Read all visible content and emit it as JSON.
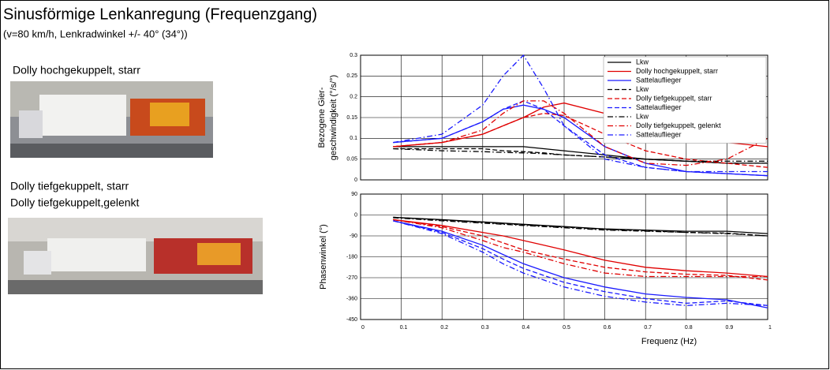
{
  "title": "Sinusförmige Lenkanregung (Frequenzgang)",
  "subtitle": "(v=80 km/h, Lenkradwinkel +/- 40° (34°))",
  "captions": [
    "Dolly hochgekuppelt, starr",
    "Dolly tiefgekuppelt, starr",
    "Dolly tiefgekuppelt,gelenkt"
  ],
  "chart_data": [
    {
      "type": "line",
      "y_label": [
        "Bezogene Gier-",
        "geschwindigkeit (°/s/°)"
      ],
      "x": [
        0.08,
        0.2,
        0.3,
        0.35,
        0.4,
        0.45,
        0.5,
        0.6,
        0.7,
        0.8,
        0.9,
        1.0
      ],
      "xlim": [
        0,
        1
      ],
      "ylim": [
        0,
        0.3
      ],
      "xgrid": [
        0,
        0.1,
        0.2,
        0.3,
        0.4,
        0.5,
        0.6,
        0.7,
        0.8,
        0.9,
        1
      ],
      "yticks": [
        0,
        0.05,
        0.1,
        0.15,
        0.2,
        0.25,
        0.3
      ],
      "grid": true,
      "legend": "upper right",
      "series": [
        {
          "name": "Lkw",
          "color": "#000000",
          "dash": "solid",
          "values": [
            0.08,
            0.08,
            0.08,
            0.08,
            0.08,
            0.075,
            0.07,
            0.06,
            0.05,
            0.045,
            0.04,
            0.04
          ]
        },
        {
          "name": "Dolly hochgekuppelt, starr",
          "color": "#e00000",
          "dash": "solid",
          "values": [
            0.08,
            0.09,
            0.11,
            0.13,
            0.15,
            0.175,
            0.185,
            0.16,
            0.12,
            0.1,
            0.09,
            0.08
          ]
        },
        {
          "name": "Sattelauflieger",
          "color": "#1a1aff",
          "dash": "solid",
          "values": [
            0.09,
            0.1,
            0.14,
            0.17,
            0.18,
            0.17,
            0.15,
            0.08,
            0.04,
            0.02,
            0.015,
            0.01
          ]
        },
        {
          "name": "Lkw",
          "color": "#000000",
          "dash": "dashed",
          "values": [
            0.075,
            0.075,
            0.075,
            0.07,
            0.068,
            0.065,
            0.06,
            0.055,
            0.05,
            0.045,
            0.04,
            0.04
          ]
        },
        {
          "name": "Dolly tiefgekuppelt, starr",
          "color": "#e00000",
          "dash": "dashed",
          "values": [
            0.08,
            0.09,
            0.11,
            0.13,
            0.15,
            0.16,
            0.155,
            0.11,
            0.07,
            0.05,
            0.04,
            0.03
          ]
        },
        {
          "name": "Sattelauflieger",
          "color": "#1a1aff",
          "dash": "dashed",
          "values": [
            0.09,
            0.1,
            0.14,
            0.17,
            0.19,
            0.17,
            0.13,
            0.06,
            0.03,
            0.02,
            0.015,
            0.01
          ]
        },
        {
          "name": "Lkw",
          "color": "#000000",
          "dash": "dashdot",
          "values": [
            0.075,
            0.07,
            0.068,
            0.066,
            0.065,
            0.063,
            0.06,
            0.055,
            0.05,
            0.045,
            0.045,
            0.045
          ]
        },
        {
          "name": "Dolly tiefgekuppelt, gelenkt",
          "color": "#e00000",
          "dash": "dashdot",
          "values": [
            0.08,
            0.09,
            0.12,
            0.16,
            0.19,
            0.19,
            0.16,
            0.08,
            0.04,
            0.035,
            0.05,
            0.1
          ]
        },
        {
          "name": "Sattelauflieger",
          "color": "#1a1aff",
          "dash": "dashdot",
          "values": [
            0.09,
            0.11,
            0.18,
            0.25,
            0.3,
            0.22,
            0.13,
            0.05,
            0.03,
            0.02,
            0.02,
            0.02
          ]
        }
      ]
    },
    {
      "type": "line",
      "x_label": "Frequenz (Hz)",
      "y_label": [
        "Phasenwinkel (°)"
      ],
      "x": [
        0.08,
        0.2,
        0.3,
        0.35,
        0.4,
        0.45,
        0.5,
        0.6,
        0.7,
        0.8,
        0.9,
        1.0
      ],
      "xlim": [
        0,
        1
      ],
      "ylim": [
        -450,
        90
      ],
      "xticks": [
        0,
        0.1,
        0.2,
        0.3,
        0.4,
        0.5,
        0.6,
        0.7,
        0.8,
        0.9,
        1
      ],
      "yticks": [
        -450,
        -360,
        -270,
        -180,
        -90,
        0,
        90
      ],
      "grid": true,
      "series": [
        {
          "color": "#000000",
          "dash": "solid",
          "values": [
            -10,
            -20,
            -30,
            -35,
            -40,
            -45,
            -50,
            -60,
            -65,
            -70,
            -70,
            -80
          ]
        },
        {
          "color": "#e00000",
          "dash": "solid",
          "values": [
            -20,
            -45,
            -75,
            -90,
            -110,
            -130,
            -150,
            -195,
            -225,
            -240,
            -250,
            -265
          ]
        },
        {
          "color": "#1a1aff",
          "dash": "solid",
          "values": [
            -25,
            -70,
            -130,
            -170,
            -210,
            -240,
            -270,
            -310,
            -340,
            -355,
            -365,
            -400
          ]
        },
        {
          "color": "#000000",
          "dash": "dashed",
          "values": [
            -10,
            -22,
            -32,
            -38,
            -42,
            -48,
            -52,
            -62,
            -68,
            -75,
            -78,
            -90
          ]
        },
        {
          "color": "#e00000",
          "dash": "dashed",
          "values": [
            -20,
            -50,
            -90,
            -120,
            -150,
            -170,
            -190,
            -225,
            -245,
            -255,
            -260,
            -280
          ]
        },
        {
          "color": "#1a1aff",
          "dash": "dashed",
          "values": [
            -25,
            -75,
            -145,
            -190,
            -230,
            -260,
            -290,
            -330,
            -360,
            -380,
            -370,
            -390
          ]
        },
        {
          "color": "#000000",
          "dash": "dashdot",
          "values": [
            -12,
            -25,
            -35,
            -40,
            -45,
            -50,
            -55,
            -65,
            -70,
            -75,
            -80,
            -90
          ]
        },
        {
          "color": "#e00000",
          "dash": "dashdot",
          "values": [
            -20,
            -55,
            -110,
            -140,
            -160,
            -185,
            -210,
            -250,
            -265,
            -265,
            -265,
            -265
          ]
        },
        {
          "color": "#1a1aff",
          "dash": "dashdot",
          "values": [
            -25,
            -80,
            -160,
            -210,
            -250,
            -280,
            -310,
            -350,
            -375,
            -390,
            -380,
            -390
          ]
        }
      ]
    }
  ]
}
